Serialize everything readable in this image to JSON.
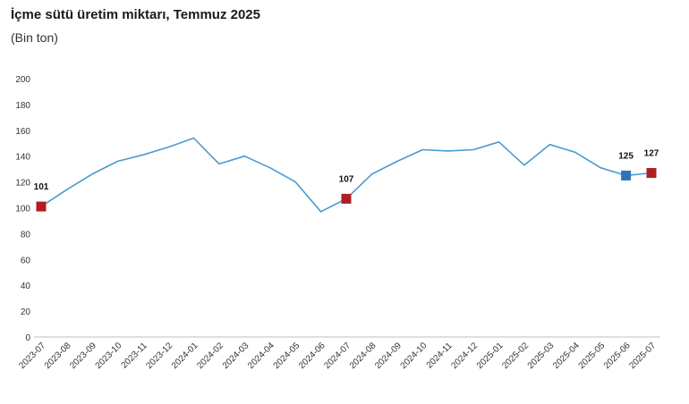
{
  "header": {
    "title": "İçme sütü üretim miktarı, Temmuz 2025",
    "subtitle": "(Bin ton)"
  },
  "chart_data": {
    "type": "line",
    "title": "İçme sütü üretim miktarı, Temmuz 2025",
    "subtitle": "(Bin ton)",
    "xlabel": "",
    "ylabel": "",
    "ylim": [
      0,
      200
    ],
    "yticks": [
      0,
      20,
      40,
      60,
      80,
      100,
      120,
      140,
      160,
      180,
      200
    ],
    "grid": false,
    "categories": [
      "2023-07",
      "2023-08",
      "2023-09",
      "2023-10",
      "2023-11",
      "2023-12",
      "2024-01",
      "2024-02",
      "2024-03",
      "2024-04",
      "2024-05",
      "2024-06",
      "2024-07",
      "2024-08",
      "2024-09",
      "2024-10",
      "2024-11",
      "2024-12",
      "2025-01",
      "2025-02",
      "2025-03",
      "2025-04",
      "2025-05",
      "2025-06",
      "2025-07"
    ],
    "series": [
      {
        "values": [
          101,
          114,
          126,
          136,
          141,
          147,
          154,
          134,
          140,
          131,
          120,
          97,
          107,
          126,
          136,
          145,
          144,
          145,
          151,
          133,
          149,
          143,
          131,
          125,
          127
        ]
      }
    ],
    "highlighted_points": [
      {
        "category": "2023-07",
        "label": "101",
        "marker": "square",
        "color": "#b01e23"
      },
      {
        "category": "2024-07",
        "label": "107",
        "marker": "square",
        "color": "#b01e23"
      },
      {
        "category": "2025-06",
        "label": "125",
        "marker": "square",
        "color": "#2e75b6"
      },
      {
        "category": "2025-07",
        "label": "127",
        "marker": "square",
        "color": "#b01e23"
      }
    ],
    "colors": {
      "line": "#4a9bd0",
      "axis": "#bfbfbf"
    }
  }
}
